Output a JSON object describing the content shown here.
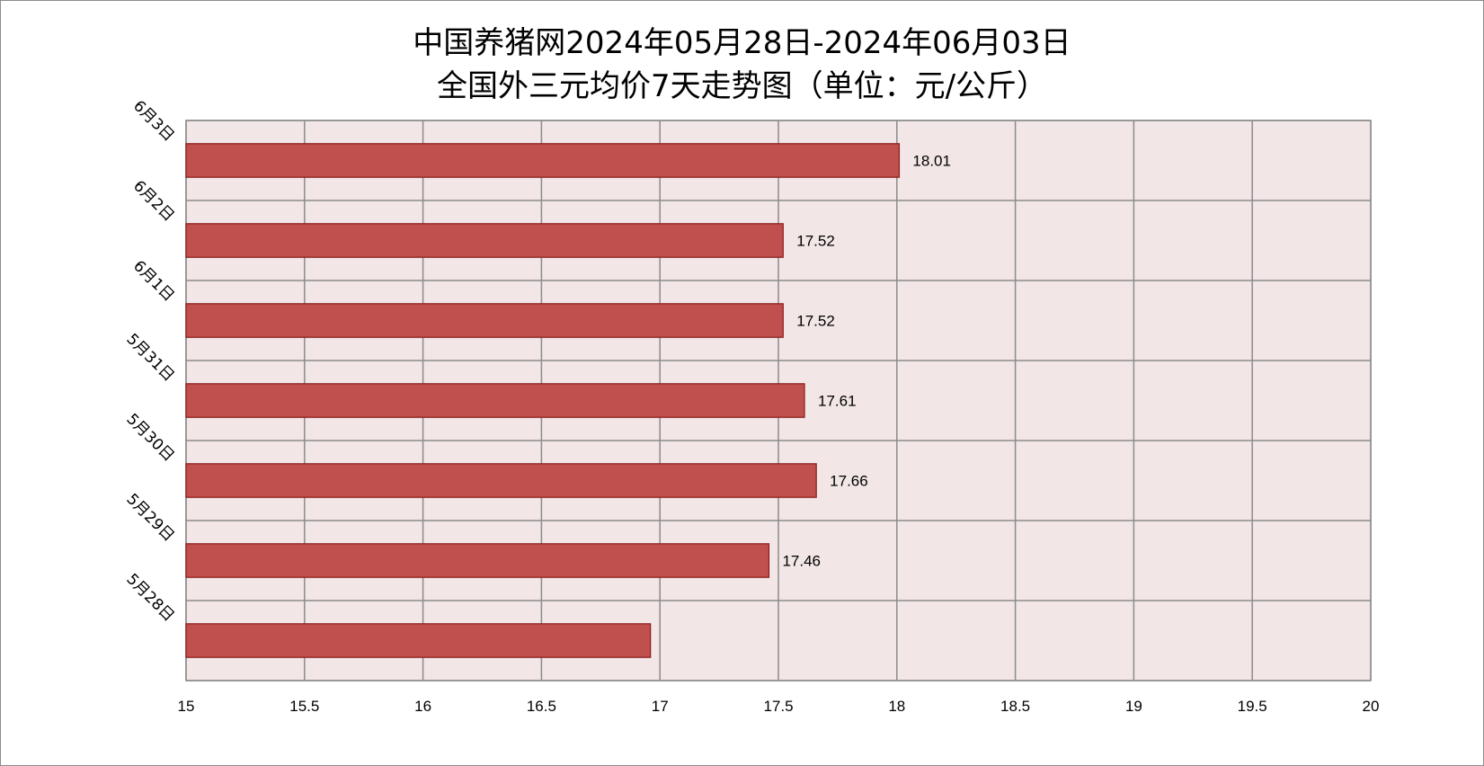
{
  "title": {
    "line1": "中国养猪网2024年05月28日-2024年06月03日",
    "line2": "全国外三元均价7天走势图（单位：元/公斤）"
  },
  "colors": {
    "bar": "#c0504d",
    "bar_border": "#8b1a1a",
    "plot_bg": "#f2e6e6",
    "grid": "#8c8c8c"
  },
  "chart_data": {
    "type": "bar",
    "orientation": "horizontal",
    "title": "中国养猪网2024年05月28日-2024年06月03日 全国外三元均价7天走势图（单位：元/公斤）",
    "categories": [
      "5月28日",
      "5月29日",
      "5月30日",
      "5月31日",
      "6月1日",
      "6月2日",
      "6月3日"
    ],
    "values": [
      16.96,
      17.46,
      17.66,
      17.61,
      17.52,
      17.52,
      18.01
    ],
    "data_labels": [
      "",
      "17.46",
      "17.66",
      "17.61",
      "17.52",
      "17.52",
      "18.01"
    ],
    "xlim": [
      15,
      20
    ],
    "x_ticks": [
      "15",
      "15.5",
      "16",
      "16.5",
      "17",
      "17.5",
      "18",
      "18.5",
      "19",
      "19.5",
      "20"
    ],
    "grid": true,
    "legend": "none"
  }
}
